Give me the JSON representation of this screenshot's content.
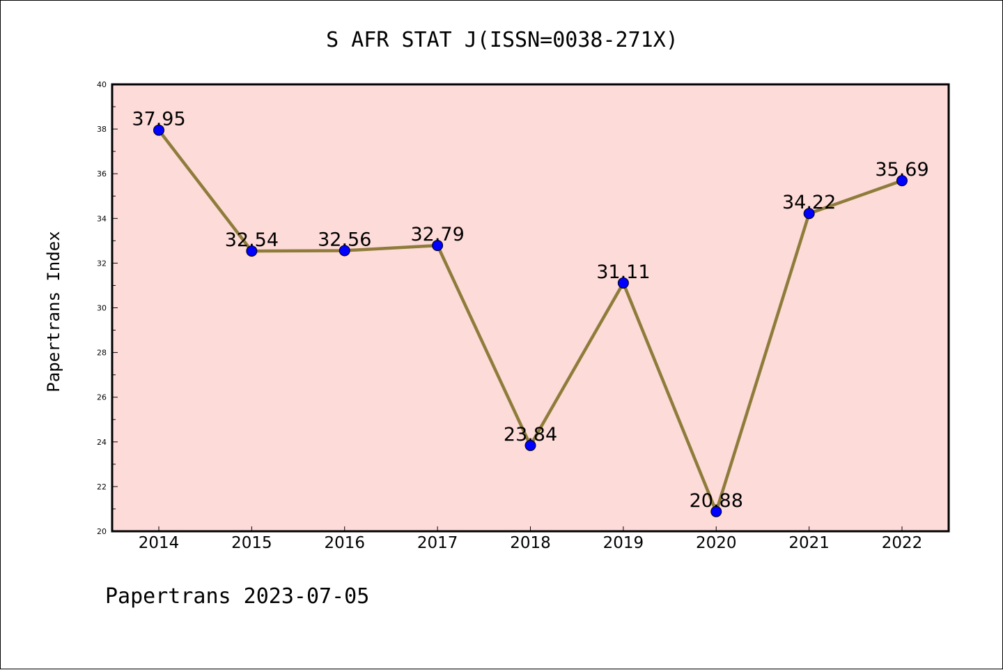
{
  "chart_data": {
    "type": "line",
    "title": "S AFR STAT J(ISSN=0038-271X)",
    "ylabel": "Papertrans Index",
    "xlabel": "",
    "footer": "Papertrans 2023-07-05",
    "categories": [
      "2014",
      "2015",
      "2016",
      "2017",
      "2018",
      "2019",
      "2020",
      "2021",
      "2022"
    ],
    "values": [
      37.95,
      32.54,
      32.56,
      32.79,
      23.84,
      31.11,
      20.88,
      34.22,
      35.69
    ],
    "data_labels": [
      "37.95",
      "32.54",
      "32.56",
      "32.79",
      "23.84",
      "31.11",
      "20.88",
      "34.22",
      "35.69"
    ],
    "ylim": [
      20,
      40
    ],
    "yticks": [
      "20",
      "22",
      "24",
      "26",
      "28",
      "30",
      "32",
      "34",
      "36",
      "38",
      "40"
    ],
    "grid": false,
    "colors": {
      "plot_background": "#fddbd9",
      "line": "#8f7c3b",
      "marker": "#0000ff"
    }
  }
}
